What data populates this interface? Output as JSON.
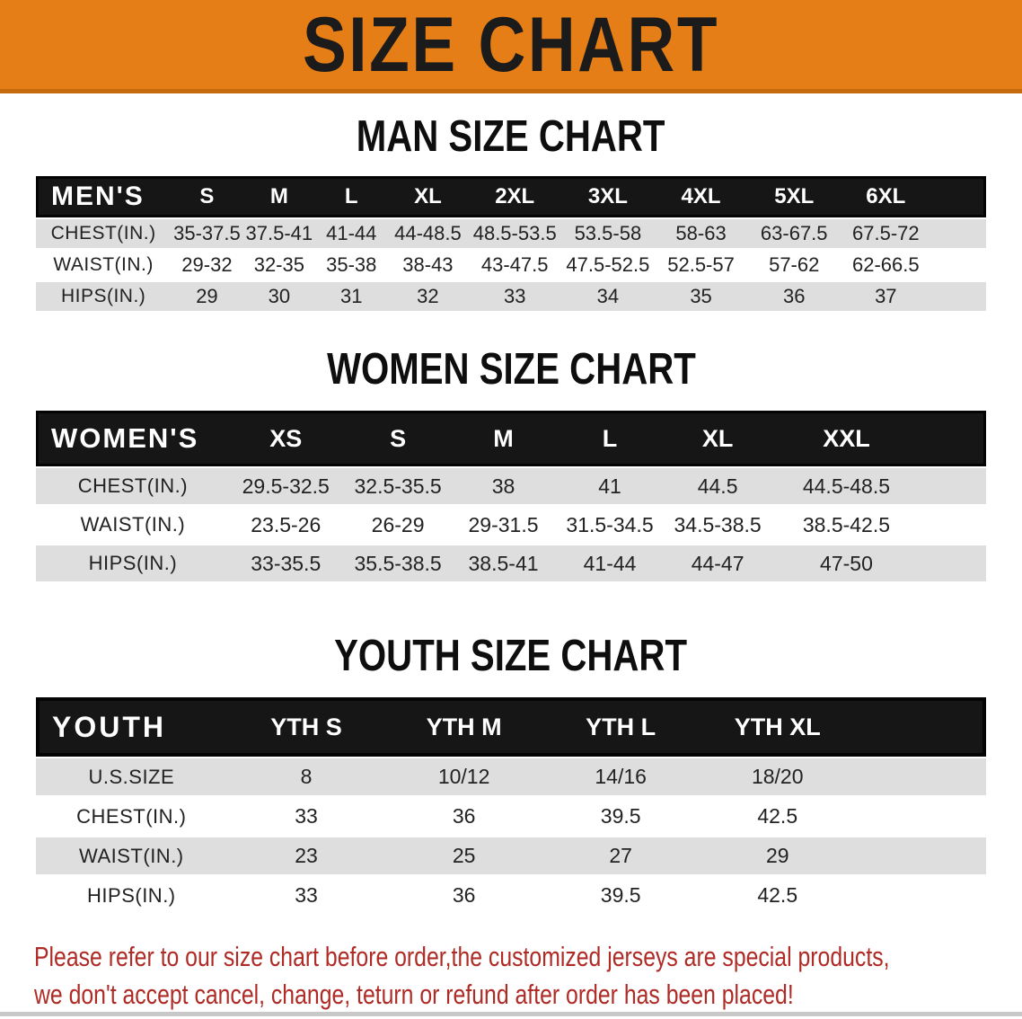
{
  "banner": {
    "title": "SIZE CHART",
    "bg_color": "#E67E17",
    "title_color": "#1B1B1B"
  },
  "chart_data": [
    {
      "type": "table",
      "id": "men",
      "heading": "MAN SIZE CHART",
      "table_label": "MEN'S",
      "columns": [
        "S",
        "M",
        "L",
        "XL",
        "2XL",
        "3XL",
        "4XL",
        "5XL",
        "6XL"
      ],
      "rows": [
        {
          "label": "CHEST(IN.)",
          "values": [
            "35-37.5",
            "37.5-41",
            "41-44",
            "44-48.5",
            "48.5-53.5",
            "53.5-58",
            "58-63",
            "63-67.5",
            "67.5-72"
          ]
        },
        {
          "label": "WAIST(IN.)",
          "values": [
            "29-32",
            "32-35",
            "35-38",
            "38-43",
            "43-47.5",
            "47.5-52.5",
            "52.5-57",
            "57-62",
            "62-66.5"
          ]
        },
        {
          "label": "HIPS(IN.)",
          "values": [
            "29",
            "30",
            "31",
            "32",
            "33",
            "34",
            "35",
            "36",
            "37"
          ]
        }
      ]
    },
    {
      "type": "table",
      "id": "women",
      "heading": "WOMEN SIZE CHART",
      "table_label": "WOMEN'S",
      "columns": [
        "XS",
        "S",
        "M",
        "L",
        "XL",
        "XXL"
      ],
      "rows": [
        {
          "label": "CHEST(IN.)",
          "values": [
            "29.5-32.5",
            "32.5-35.5",
            "38",
            "41",
            "44.5",
            "44.5-48.5"
          ]
        },
        {
          "label": "WAIST(IN.)",
          "values": [
            "23.5-26",
            "26-29",
            "29-31.5",
            "31.5-34.5",
            "34.5-38.5",
            "38.5-42.5"
          ]
        },
        {
          "label": "HIPS(IN.)",
          "values": [
            "33-35.5",
            "35.5-38.5",
            "38.5-41",
            "41-44",
            "44-47",
            "47-50"
          ]
        }
      ]
    },
    {
      "type": "table",
      "id": "youth",
      "heading": "YOUTH SIZE CHART",
      "table_label": "YOUTH",
      "columns": [
        "YTH S",
        "YTH M",
        "YTH L",
        "YTH XL"
      ],
      "rows": [
        {
          "label": "U.S.SIZE",
          "values": [
            "8",
            "10/12",
            "14/16",
            "18/20"
          ]
        },
        {
          "label": "CHEST(IN.)",
          "values": [
            "33",
            "36",
            "39.5",
            "42.5"
          ]
        },
        {
          "label": "WAIST(IN.)",
          "values": [
            "23",
            "25",
            "27",
            "29"
          ]
        },
        {
          "label": "HIPS(IN.)",
          "values": [
            "33",
            "36",
            "39.5",
            "42.5"
          ]
        }
      ]
    }
  ],
  "disclaimer": {
    "line1": "Please refer to our size chart before order,the customized jerseys are special products,",
    "line2": "we don't accept cancel, change, teturn or refund after order has been placed!",
    "color": "#AF2B26"
  }
}
